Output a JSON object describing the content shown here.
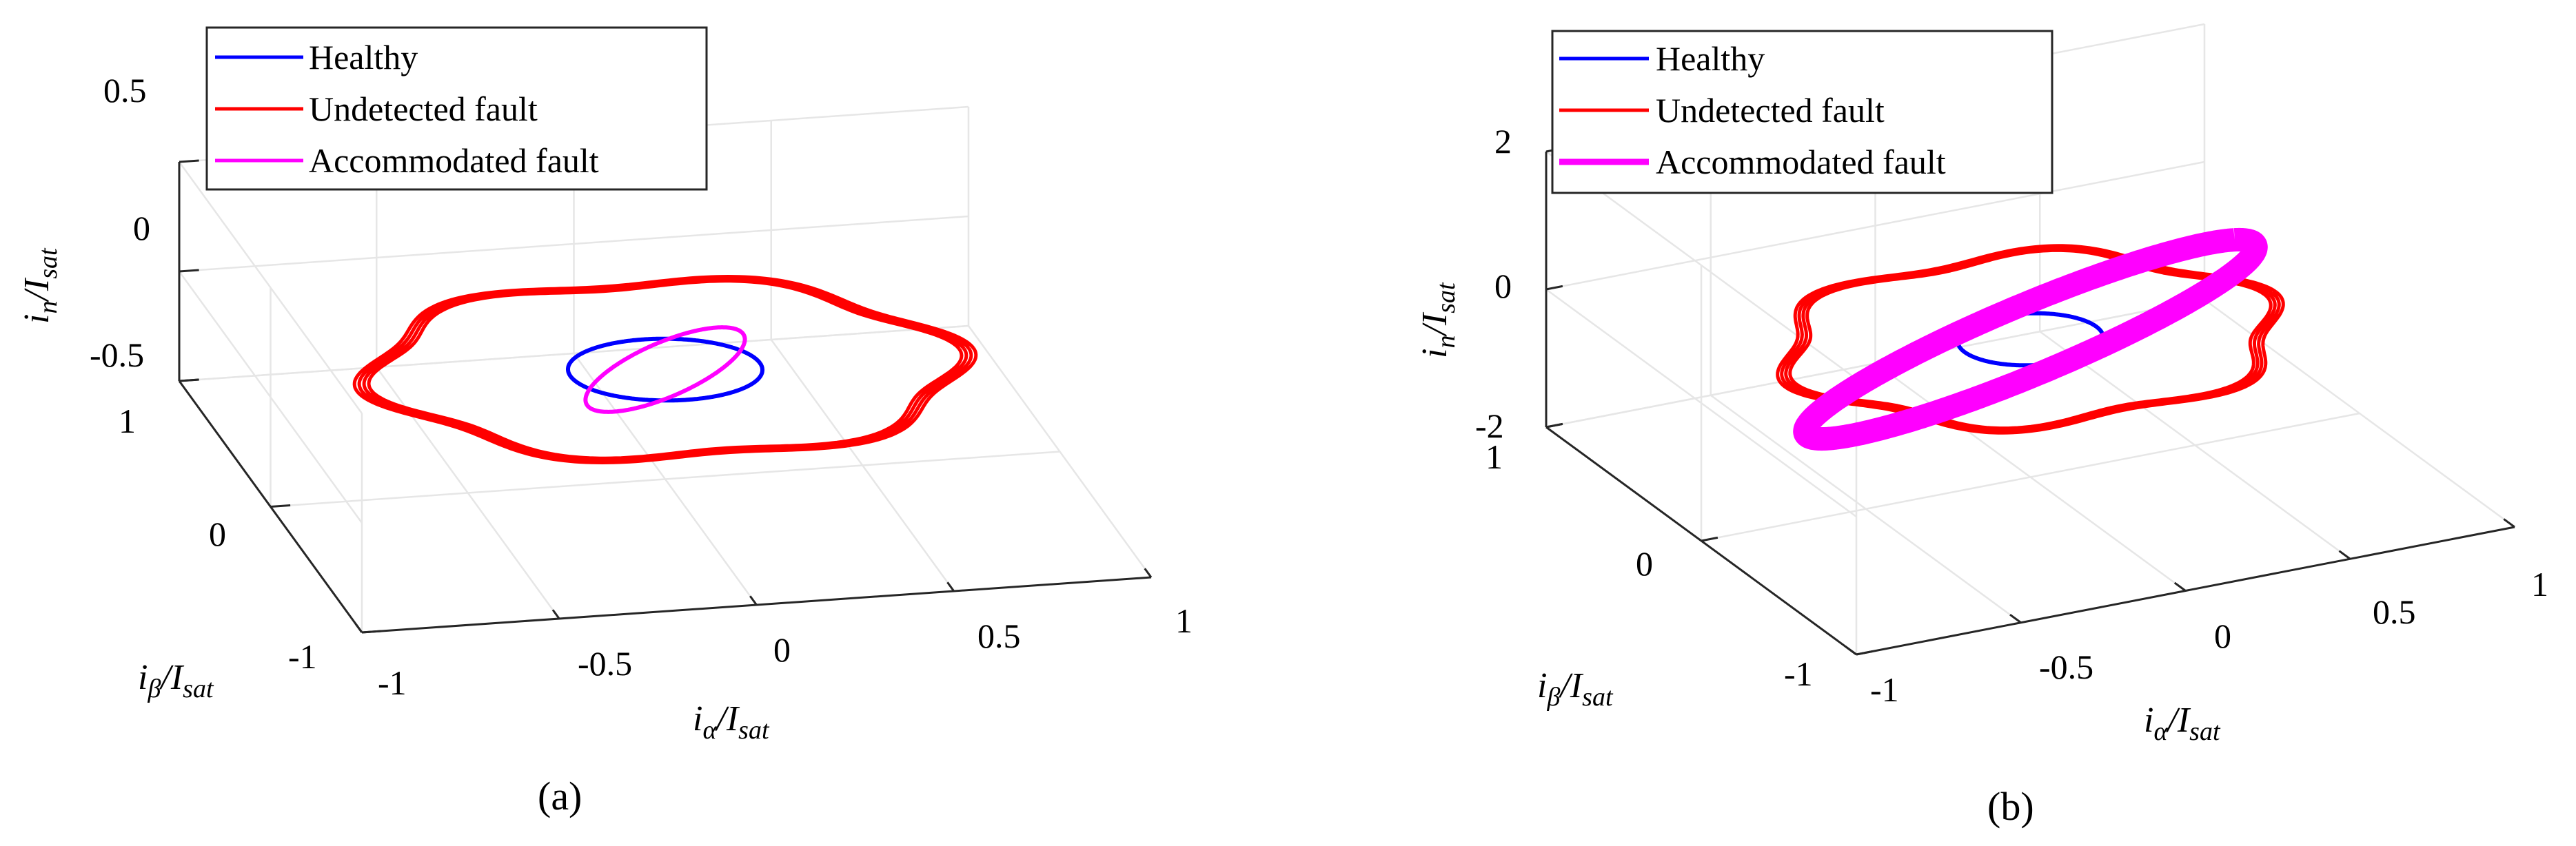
{
  "chart_data": [
    {
      "type": "line3d",
      "caption": "(a)",
      "xlabel": "iα/Isat",
      "ylabel": "iβ/Isat",
      "zlabel": "in/Isat",
      "x_ticks": [
        "-1",
        "-0.5",
        "0",
        "0.5",
        "1"
      ],
      "y_ticks": [
        "-1",
        "0",
        "1"
      ],
      "z_ticks": [
        "-0.5",
        "0",
        "0.5"
      ],
      "xlim": [
        -1,
        1
      ],
      "ylim": [
        -1,
        1
      ],
      "zlim": [
        -0.5,
        0.5
      ],
      "grid": true,
      "legend_position": "top-left",
      "series": [
        {
          "name": "Healthy",
          "color": "#0000ff",
          "shape": "circle",
          "radius": 0.24,
          "z_amplitude": 0.0,
          "z_offset": 0.0
        },
        {
          "name": "Undetected fault",
          "color": "#ff0000",
          "shape": "hexagonal-ring",
          "radius": 0.72,
          "ripple": 0.06,
          "z_amplitude": 0.0,
          "z_offset": 0.0
        },
        {
          "name": "Accommodated fault",
          "color": "#ff00ff",
          "shape": "tilted-ellipse",
          "radius": 0.2,
          "z_amplitude": 0.48,
          "z_offset": 0.0
        }
      ]
    },
    {
      "type": "line3d",
      "caption": "(b)",
      "xlabel": "iα/Isat",
      "ylabel": "iβ/Isat",
      "zlabel": "in/Isat",
      "x_ticks": [
        "-1",
        "-0.5",
        "0",
        "0.5",
        "1"
      ],
      "y_ticks": [
        "-1",
        "0",
        "1"
      ],
      "z_ticks": [
        "-2",
        "0",
        "2"
      ],
      "xlim": [
        -1,
        1
      ],
      "ylim": [
        -1,
        1
      ],
      "zlim": [
        -2,
        2
      ],
      "grid": true,
      "legend_position": "top-left",
      "series": [
        {
          "name": "Healthy",
          "color": "#0000ff",
          "shape": "circle",
          "radius": 0.2,
          "z_amplitude": 0.0,
          "z_offset": 0.0
        },
        {
          "name": "Undetected fault",
          "color": "#ff0000",
          "shape": "hexagonal-ring",
          "radius": 0.68,
          "ripple": 0.07,
          "z_amplitude": 0.0,
          "z_offset": 0.0
        },
        {
          "name": "Accommodated fault",
          "color": "#ff00ff",
          "shape": "thick-tilted-ellipse",
          "radius": 0.62,
          "z_amplitude": 1.4,
          "z_offset": 0.0
        }
      ]
    }
  ]
}
